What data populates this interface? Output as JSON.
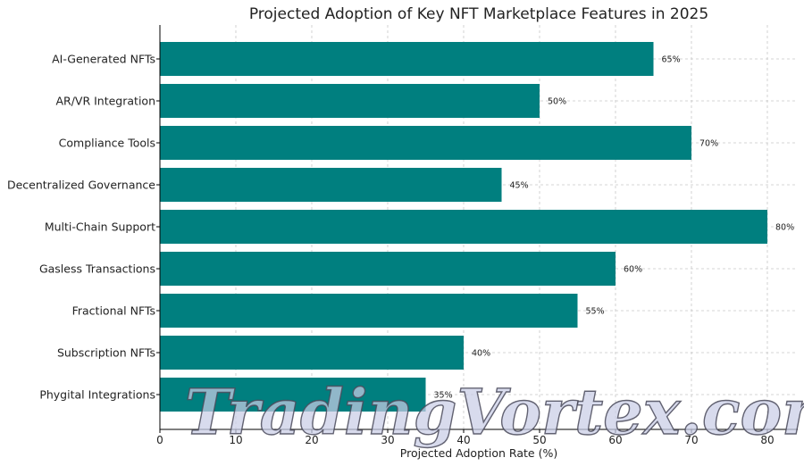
{
  "chart_data": {
    "type": "bar",
    "orientation": "horizontal",
    "title": "Projected Adoption of Key NFT Marketplace Features in 2025",
    "xlabel": "Projected Adoption Rate (%)",
    "ylabel": "",
    "categories": [
      "AI-Generated NFTs",
      "AR/VR Integration",
      "Compliance Tools",
      "Decentralized Governance",
      "Multi-Chain Support",
      "Gasless Transactions",
      "Fractional NFTs",
      "Subscription NFTs",
      "Phygital Integrations"
    ],
    "values": [
      65,
      50,
      70,
      45,
      80,
      60,
      55,
      40,
      35
    ],
    "value_labels": [
      "65%",
      "50%",
      "70%",
      "45%",
      "80%",
      "60%",
      "55%",
      "40%",
      "35%"
    ],
    "xlim": [
      0,
      84
    ],
    "xticks": [
      0,
      10,
      20,
      30,
      40,
      50,
      60,
      70,
      80
    ],
    "bar_color": "#007f7f",
    "grid": true,
    "legend": "none"
  },
  "watermark": {
    "text": "TradingVortex.com"
  }
}
